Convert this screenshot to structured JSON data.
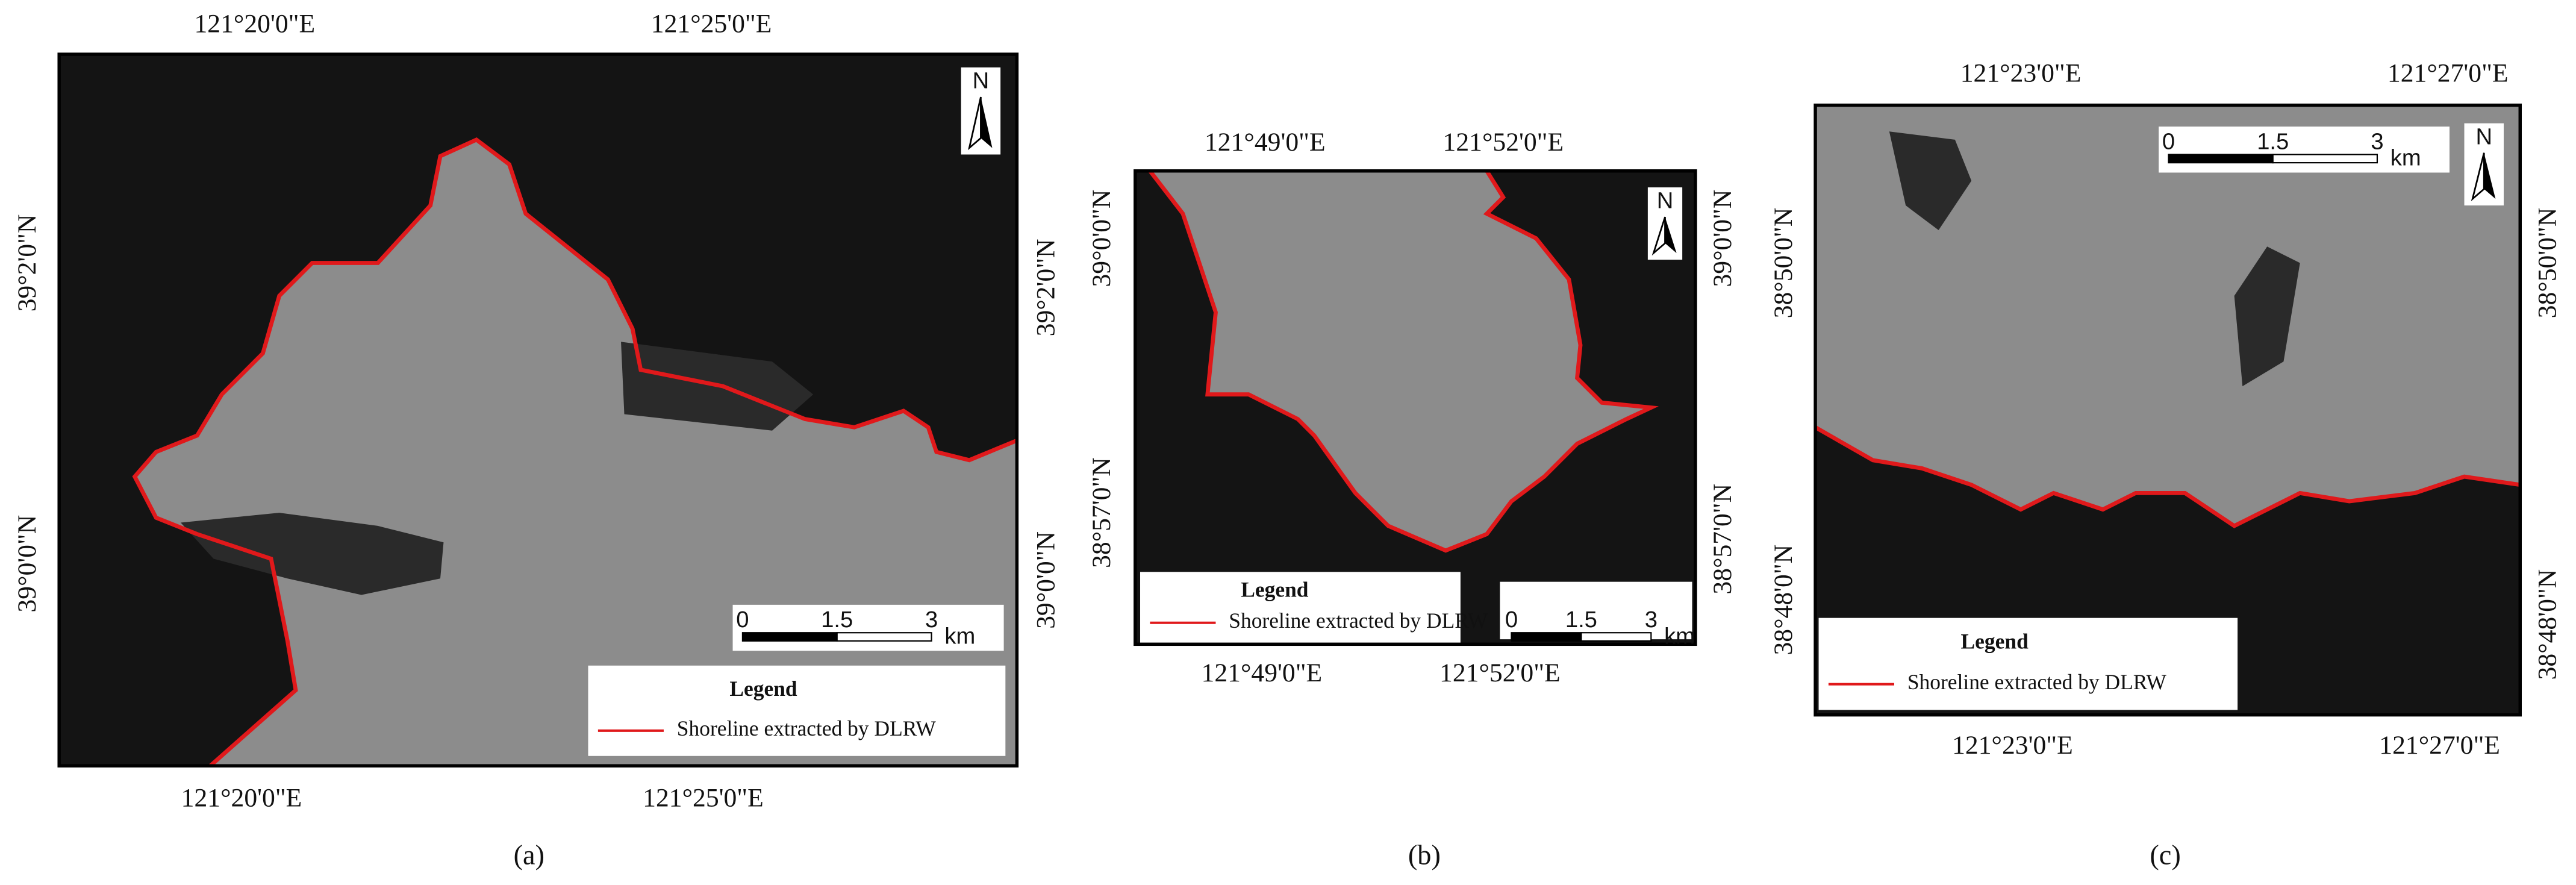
{
  "panels": [
    {
      "caption": "(a)",
      "top_labels": [
        "121°20'0\"E",
        "121°25'0\"E"
      ],
      "bottom_labels": [
        "121°20'0\"E",
        "121°25'0\"E"
      ],
      "left_labels": [
        "39°2'0\"N",
        "39°0'0\"N"
      ],
      "right_labels": [
        "39°2'0\"N",
        "39°0'0\"N"
      ],
      "legend_title": "Legend",
      "legend_entry": "Shoreline extracted by DLRW",
      "scale_labels": [
        "0",
        "1.5",
        "3"
      ],
      "scale_unit": "km",
      "north": "N"
    },
    {
      "caption": "(b)",
      "top_labels": [
        "121°49'0\"E",
        "121°52'0\"E"
      ],
      "bottom_labels": [
        "121°49'0\"E",
        "121°52'0\"E"
      ],
      "left_labels": [
        "39°0'0\"N",
        "38°57'0\"N"
      ],
      "right_labels": [
        "39°0'0\"N",
        "38°57'0\"N"
      ],
      "legend_title": "Legend",
      "legend_entry": "Shoreline extracted by DLRW",
      "scale_labels": [
        "0",
        "1.5",
        "3"
      ],
      "scale_unit": "km",
      "north": "N"
    },
    {
      "caption": "(c)",
      "top_labels": [
        "121°23'0\"E",
        "121°27'0\"E"
      ],
      "bottom_labels": [
        "121°23'0\"E",
        "121°27'0\"E"
      ],
      "left_labels": [
        "38°50'0\"N",
        "38°48'0\"N"
      ],
      "right_labels": [
        "38°50'0\"N",
        "38°48'0\"N"
      ],
      "legend_title": "Legend",
      "legend_entry": "Shoreline extracted by DLRW",
      "scale_labels": [
        "0",
        "1.5",
        "3"
      ],
      "scale_unit": "km",
      "north": "N"
    }
  ]
}
